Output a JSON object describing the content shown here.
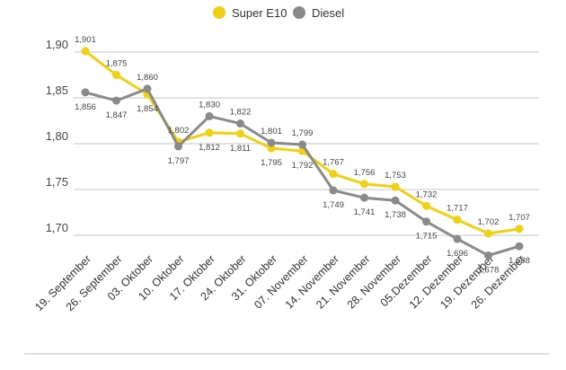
{
  "chart_data": {
    "type": "line",
    "title": "",
    "xlabel": "",
    "ylabel": "",
    "ylim": [
      1.65,
      1.92
    ],
    "y_ticks": [
      "1,90",
      "1,85",
      "1,80",
      "1,75",
      "1,70"
    ],
    "y_tick_values": [
      1.9,
      1.85,
      1.8,
      1.75,
      1.7
    ],
    "grid": "horizontal",
    "legend_position": "top-center",
    "categories": [
      "19. September",
      "26. September",
      "03. Oktober",
      "10. Oktober",
      "17. Oktober",
      "24. Oktober",
      "31. Oktober",
      "07. November",
      "14. November",
      "21. November",
      "28. November",
      "05.Dezember",
      "12. Dezember",
      "19. Dezember",
      "26. Dezember"
    ],
    "series": [
      {
        "name": "Super E10",
        "color": "#f0d014",
        "values": [
          1.901,
          1.875,
          1.854,
          1.802,
          1.812,
          1.811,
          1.795,
          1.792,
          1.767,
          1.756,
          1.753,
          1.732,
          1.717,
          1.702,
          1.707
        ],
        "labels": [
          "1,901",
          "1,875",
          "1,854",
          "1,802",
          "1,812",
          "1,811",
          "1,795",
          "1,792",
          "1,767",
          "1,756",
          "1,753",
          "1,732",
          "1,717",
          "1,702",
          "1,707"
        ]
      },
      {
        "name": "Diesel",
        "color": "#8a8a8a",
        "values": [
          1.856,
          1.847,
          1.86,
          1.797,
          1.83,
          1.822,
          1.801,
          1.799,
          1.749,
          1.741,
          1.738,
          1.715,
          1.696,
          1.678,
          1.688
        ],
        "labels": [
          "1,856",
          "1,847",
          "1,860",
          "1,797",
          "1,830",
          "1,822",
          "1,801",
          "1,799",
          "1,749",
          "1,741",
          "1,738",
          "1,715",
          "1,696",
          "1,678",
          "1,688"
        ]
      }
    ]
  }
}
